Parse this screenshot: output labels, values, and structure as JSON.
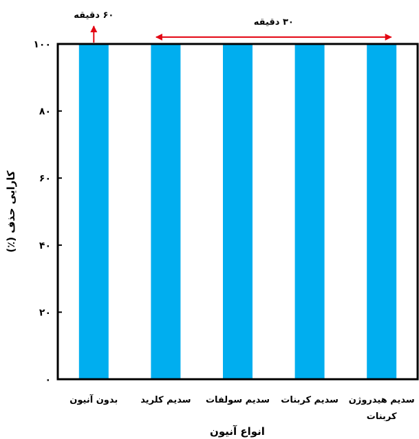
{
  "chart_data": {
    "type": "bar",
    "title": "",
    "xlabel": "انواع آنیون",
    "ylabel": "کارایی حذف (٪)",
    "ylim": [
      0,
      100
    ],
    "yticks": [
      0,
      20,
      40,
      60,
      80,
      100
    ],
    "ytick_labels": [
      "٠",
      "٢٠",
      "۴٠",
      "۶٠",
      "٨٠",
      "١٠٠"
    ],
    "categories": [
      [
        "بدون آنیون"
      ],
      [
        "سدیم کلرید"
      ],
      [
        "سدیم سولفات"
      ],
      [
        "سدیم کربنات"
      ],
      [
        "سدیم هیدروژن",
        "کربنات"
      ]
    ],
    "values": [
      100,
      100,
      100,
      100,
      100
    ],
    "bar_color": "#00AEEF",
    "grid": false,
    "annotations": [
      {
        "text": "۶٠ دقیقه",
        "applies_to": [
          0
        ],
        "style": "arrow-up",
        "color": "#E30613"
      },
      {
        "text": "٣٠ دقیقه",
        "applies_to": [
          1,
          2,
          3,
          4
        ],
        "style": "double-arrow",
        "color": "#E30613"
      }
    ]
  }
}
